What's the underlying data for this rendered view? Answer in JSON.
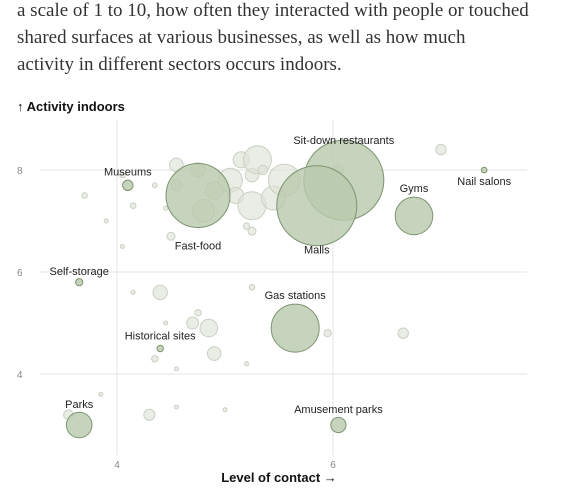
{
  "intro_lines": [
    "a scale of 1 to 10, how often they interacted with people or touched",
    "shared surfaces at various businesses, as well as how much",
    "activity in different sectors occurs indoors."
  ],
  "colors": {
    "bubble_fill": "#b9c9ac",
    "bubble_stroke": "#7d9470",
    "background_bubble_fill": "#dde3d8",
    "background_bubble_stroke": "#c9d1c2",
    "gridline": "#e4e4e4",
    "text": "#222222"
  },
  "chart_data": {
    "type": "scatter",
    "title": "",
    "xlabel": "Level of contact →",
    "ylabel": "↑ Activity indoors",
    "xlim": [
      3.1,
      7.5
    ],
    "ylim": [
      2.6,
      8.9
    ],
    "x_ticks": [
      4,
      6
    ],
    "y_ticks": [
      4,
      6,
      8
    ],
    "grid": true,
    "labeled_points": [
      {
        "label": "Sit-down restaurants",
        "x": 6.1,
        "y": 7.8,
        "size": 1.0
      },
      {
        "label": "Malls",
        "x": 5.85,
        "y": 7.3,
        "size": 1.0
      },
      {
        "label": "Fast-food",
        "x": 4.75,
        "y": 7.5,
        "size": 0.8
      },
      {
        "label": "Gyms",
        "x": 6.75,
        "y": 7.1,
        "size": 0.47
      },
      {
        "label": "Nail salons",
        "x": 7.4,
        "y": 8.0,
        "size": 0.07
      },
      {
        "label": "Museums",
        "x": 4.1,
        "y": 7.7,
        "size": 0.13
      },
      {
        "label": "Self-storage",
        "x": 3.65,
        "y": 5.8,
        "size": 0.09
      },
      {
        "label": "Gas stations",
        "x": 5.65,
        "y": 4.9,
        "size": 0.6
      },
      {
        "label": "Historical sites",
        "x": 4.4,
        "y": 4.5,
        "size": 0.08
      },
      {
        "label": "Parks",
        "x": 3.65,
        "y": 3.0,
        "size": 0.32
      },
      {
        "label": "Amusement parks",
        "x": 6.05,
        "y": 3.0,
        "size": 0.19
      }
    ],
    "background_points": [
      {
        "x": 3.7,
        "y": 7.5,
        "size": 0.07
      },
      {
        "x": 3.9,
        "y": 7.0,
        "size": 0.05
      },
      {
        "x": 4.05,
        "y": 7.9,
        "size": 0.07
      },
      {
        "x": 4.15,
        "y": 7.3,
        "size": 0.07
      },
      {
        "x": 4.35,
        "y": 7.7,
        "size": 0.06
      },
      {
        "x": 4.45,
        "y": 7.25,
        "size": 0.05
      },
      {
        "x": 4.55,
        "y": 7.7,
        "size": 0.13
      },
      {
        "x": 4.55,
        "y": 8.1,
        "size": 0.17
      },
      {
        "x": 4.5,
        "y": 6.7,
        "size": 0.1
      },
      {
        "x": 4.75,
        "y": 8.0,
        "size": 0.18
      },
      {
        "x": 4.8,
        "y": 7.2,
        "size": 0.28
      },
      {
        "x": 4.9,
        "y": 7.6,
        "size": 0.22
      },
      {
        "x": 5.05,
        "y": 7.8,
        "size": 0.3
      },
      {
        "x": 5.1,
        "y": 7.5,
        "size": 0.2
      },
      {
        "x": 5.15,
        "y": 8.2,
        "size": 0.2
      },
      {
        "x": 5.25,
        "y": 7.9,
        "size": 0.17
      },
      {
        "x": 5.25,
        "y": 7.3,
        "size": 0.35
      },
      {
        "x": 5.3,
        "y": 8.2,
        "size": 0.35
      },
      {
        "x": 5.35,
        "y": 8.0,
        "size": 0.12
      },
      {
        "x": 5.45,
        "y": 7.45,
        "size": 0.3
      },
      {
        "x": 5.55,
        "y": 7.8,
        "size": 0.4
      },
      {
        "x": 5.2,
        "y": 6.9,
        "size": 0.08
      },
      {
        "x": 5.25,
        "y": 6.8,
        "size": 0.1
      },
      {
        "x": 4.05,
        "y": 6.5,
        "size": 0.05
      },
      {
        "x": 4.15,
        "y": 5.6,
        "size": 0.05
      },
      {
        "x": 4.4,
        "y": 5.6,
        "size": 0.18
      },
      {
        "x": 4.45,
        "y": 5.0,
        "size": 0.05
      },
      {
        "x": 4.7,
        "y": 5.0,
        "size": 0.15
      },
      {
        "x": 4.75,
        "y": 5.2,
        "size": 0.08
      },
      {
        "x": 4.85,
        "y": 4.9,
        "size": 0.22
      },
      {
        "x": 4.35,
        "y": 4.3,
        "size": 0.08
      },
      {
        "x": 4.55,
        "y": 4.1,
        "size": 0.05
      },
      {
        "x": 4.9,
        "y": 4.4,
        "size": 0.17
      },
      {
        "x": 5.2,
        "y": 4.2,
        "size": 0.05
      },
      {
        "x": 5.25,
        "y": 5.7,
        "size": 0.07
      },
      {
        "x": 5.95,
        "y": 4.8,
        "size": 0.09
      },
      {
        "x": 6.65,
        "y": 4.8,
        "size": 0.13
      },
      {
        "x": 6.05,
        "y": 8.0,
        "size": 0.12
      },
      {
        "x": 7.0,
        "y": 8.4,
        "size": 0.13
      },
      {
        "x": 4.3,
        "y": 3.2,
        "size": 0.14
      },
      {
        "x": 4.55,
        "y": 3.35,
        "size": 0.05
      },
      {
        "x": 5.0,
        "y": 3.3,
        "size": 0.05
      },
      {
        "x": 3.55,
        "y": 3.2,
        "size": 0.12
      },
      {
        "x": 3.85,
        "y": 3.6,
        "size": 0.05
      }
    ]
  }
}
